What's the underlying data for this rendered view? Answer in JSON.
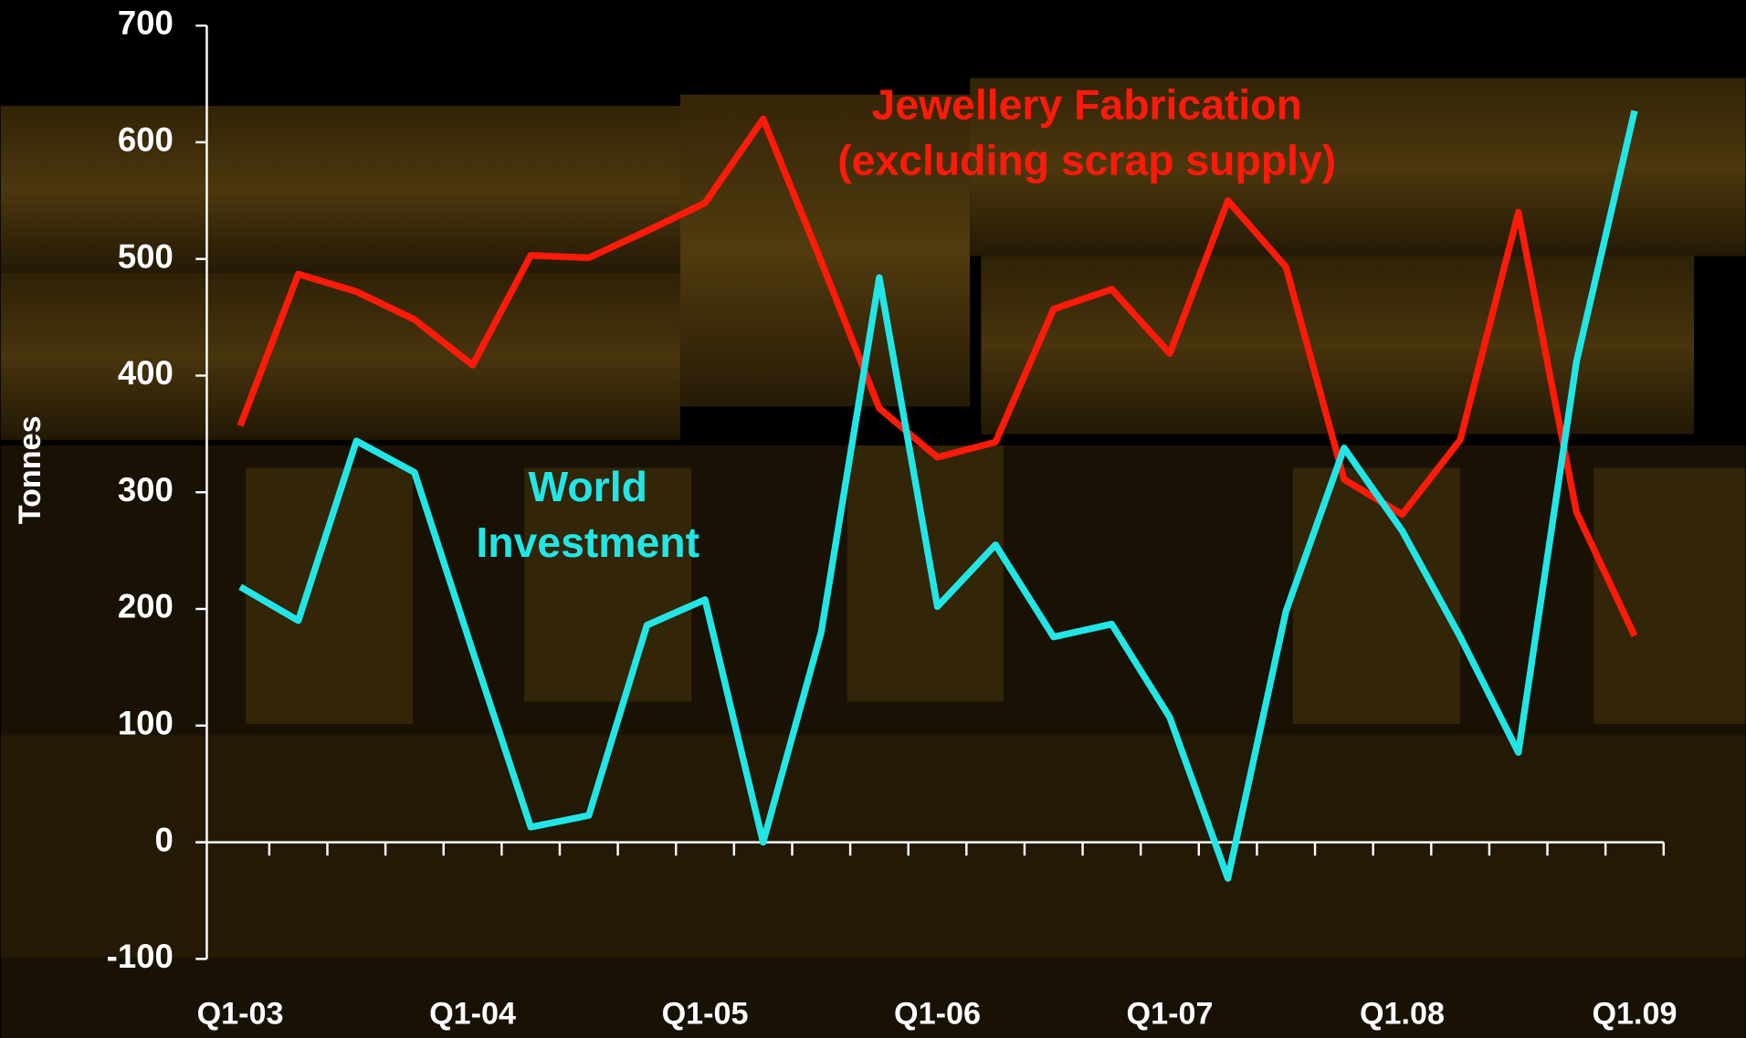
{
  "chart_data": {
    "type": "line",
    "y_label": "Tonnes",
    "categories": [
      "Q1-03",
      null,
      null,
      null,
      "Q1-04",
      null,
      null,
      null,
      "Q1-05",
      null,
      null,
      null,
      "Q1-06",
      null,
      null,
      null,
      "Q1-07",
      null,
      null,
      null,
      "Q1.08",
      null,
      null,
      null,
      "Q1.09"
    ],
    "series": [
      {
        "label": [
          "Jewellery Fabrication",
          "(excluding scrap supply)"
        ],
        "color": "#ff1a0a",
        "values": [
          357,
          487,
          472,
          448,
          409,
          503,
          501,
          524,
          548,
          620,
          498,
          372,
          330,
          343,
          457,
          474,
          419,
          550,
          493,
          311,
          281,
          345,
          540,
          283,
          177
        ]
      },
      {
        "label": [
          "World",
          "Investment"
        ],
        "color": "#22e6e6",
        "values": [
          219,
          190,
          344,
          317,
          164,
          13,
          23,
          186,
          208,
          0,
          180,
          484,
          202,
          255,
          176,
          187,
          107,
          -31,
          198,
          338,
          267,
          176,
          77,
          412,
          627
        ]
      }
    ],
    "ylim": [
      -100,
      700
    ],
    "yticks": [
      -100,
      0,
      100,
      200,
      300,
      400,
      500,
      600,
      700
    ]
  }
}
